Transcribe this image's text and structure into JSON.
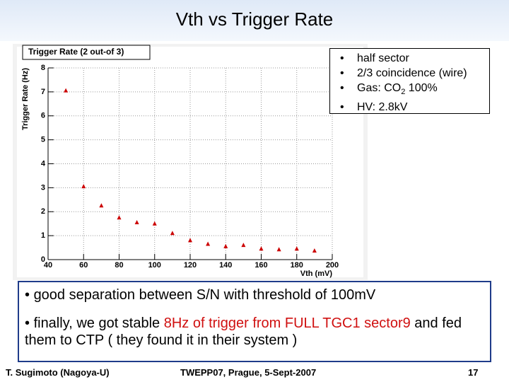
{
  "slide_title": "Vth vs Trigger Rate",
  "chart_data": {
    "type": "scatter",
    "title": "Trigger Rate (2 out-of 3)",
    "x_label": "Vth (mV)",
    "y_label": "Trigger Rate (Hz)",
    "series": [
      {
        "color": "#cc0000",
        "x": [
          50,
          60,
          70,
          80,
          90,
          100,
          110,
          120,
          130,
          140,
          150,
          160,
          170,
          180,
          190
        ],
        "values": [
          7.05,
          3.05,
          2.25,
          1.75,
          1.55,
          1.5,
          1.1,
          0.8,
          0.65,
          0.55,
          0.6,
          0.45,
          0.42,
          0.45,
          0.37
        ]
      }
    ],
    "xlim": [
      40,
      200
    ],
    "xticks": [
      40,
      60,
      80,
      100,
      120,
      140,
      160,
      180,
      200
    ],
    "ylim": [
      0,
      8
    ],
    "yticks": [
      0,
      1,
      2,
      3,
      4,
      5,
      6,
      7,
      8
    ],
    "grid": true
  },
  "conditions": {
    "items": [
      "half sector",
      "2/3 coincidence (wire)",
      "HV: 2.8kV"
    ],
    "gas": [
      "Gas: CO",
      "2",
      " 100%"
    ]
  },
  "bullets": {
    "first": "good separation between S/N with threshold of 100mV",
    "second": [
      "finally, we got stable ",
      "8Hz of trigger from FULL TGC1 sector9",
      " and fed them to CTP ( they found it in their system )"
    ]
  },
  "footer": {
    "author": "T. Sugimoto (Nagoya-U)",
    "venue": "TWEPP07, Prague, 5-Sept-2007",
    "page": "17"
  }
}
